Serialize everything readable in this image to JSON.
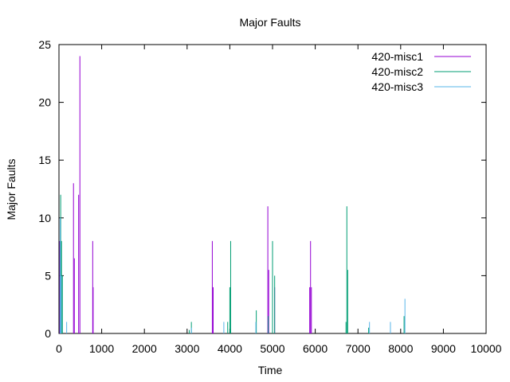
{
  "chart_data": {
    "type": "line",
    "title": "Major Faults",
    "xlabel": "Time",
    "ylabel": "Major Faults",
    "xlim": [
      0,
      10000
    ],
    "ylim": [
      0,
      25
    ],
    "xticks": [
      0,
      1000,
      2000,
      3000,
      4000,
      5000,
      6000,
      7000,
      8000,
      9000,
      10000
    ],
    "yticks": [
      0,
      5,
      10,
      15,
      20,
      25
    ],
    "legend_position": "top-right",
    "grid": false,
    "series": [
      {
        "name": "420-misc1",
        "color": "#9400d3",
        "spikes": [
          [
            20,
            8
          ],
          [
            340,
            13
          ],
          [
            360,
            6.5
          ],
          [
            460,
            12
          ],
          [
            490,
            24
          ],
          [
            790,
            8
          ],
          [
            800,
            4
          ],
          [
            3590,
            8
          ],
          [
            3610,
            4
          ],
          [
            4890,
            11
          ],
          [
            4910,
            5.5
          ],
          [
            5050,
            4
          ],
          [
            5870,
            4
          ],
          [
            5890,
            8
          ],
          [
            5910,
            4
          ]
        ]
      },
      {
        "name": "420-misc2",
        "color": "#009e73",
        "spikes": [
          [
            40,
            12
          ],
          [
            60,
            8
          ],
          [
            80,
            5
          ],
          [
            3050,
            0.3
          ],
          [
            3100,
            1
          ],
          [
            3950,
            1
          ],
          [
            4000,
            4
          ],
          [
            4020,
            8
          ],
          [
            4620,
            2
          ],
          [
            4900,
            1.5
          ],
          [
            5000,
            8
          ],
          [
            5050,
            5
          ],
          [
            6720,
            1
          ],
          [
            6740,
            11
          ],
          [
            6760,
            5.5
          ],
          [
            7250,
            0.5
          ],
          [
            8080,
            1.5
          ]
        ]
      },
      {
        "name": "420-misc3",
        "color": "#56b4e9",
        "spikes": [
          [
            30,
            10
          ],
          [
            50,
            5
          ],
          [
            180,
            1
          ],
          [
            3100,
            0.5
          ],
          [
            3860,
            1
          ],
          [
            4610,
            1
          ],
          [
            7270,
            1
          ],
          [
            7760,
            1
          ],
          [
            8100,
            3
          ]
        ]
      }
    ]
  }
}
